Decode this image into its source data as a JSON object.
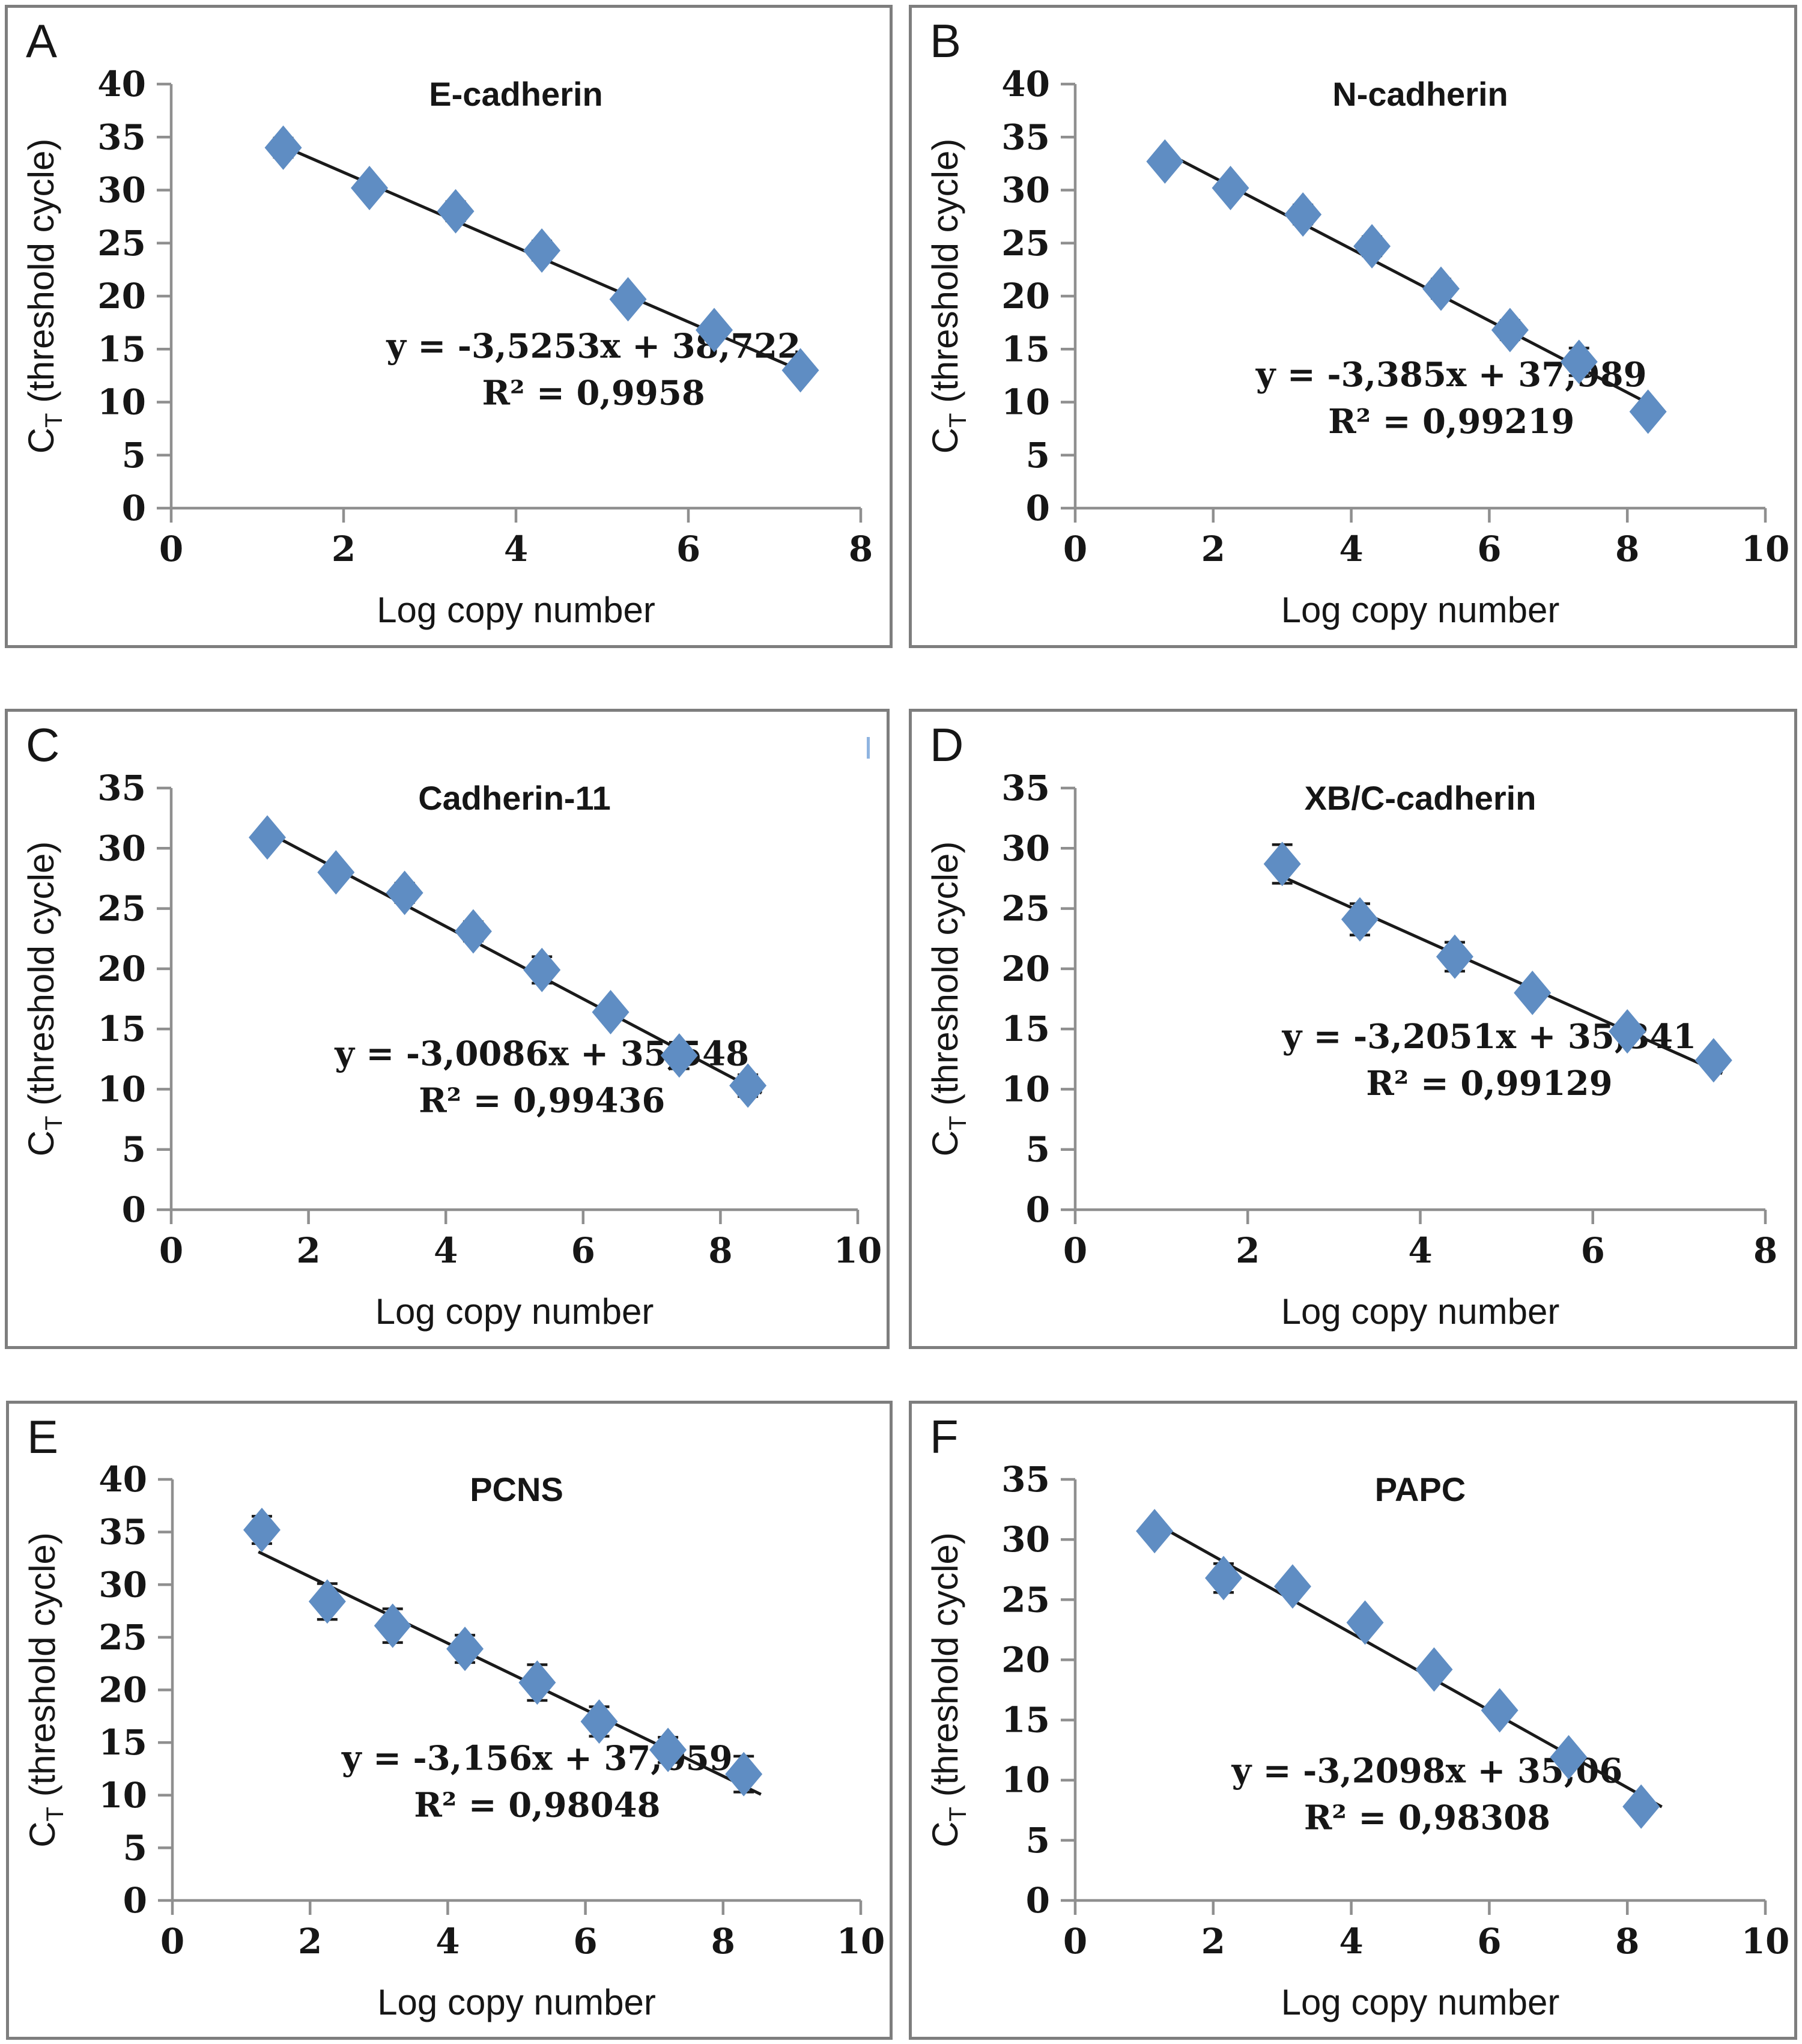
{
  "figure": {
    "background": "#ffffff",
    "panel_border_color": "#7e7e7e",
    "axis_color": "#8f8f8f",
    "text_color": "#161616",
    "marker_color": "#5f8dc3",
    "trend_color": "#1a1a1a",
    "error_bar_color": "#1a1a1a"
  },
  "chart_data": [
    {
      "type": "scatter",
      "panel": "A",
      "title": "E-cadherin",
      "xlabel": "Log copy number",
      "ylabel_pre": "C",
      "ylabel_sub": "T",
      "ylabel_post": " (threshold cycle)",
      "xlim": [
        0,
        8
      ],
      "ylim": [
        0,
        40
      ],
      "xticks": [
        0,
        2,
        4,
        6,
        8
      ],
      "yticks": [
        0,
        5,
        10,
        15,
        20,
        25,
        30,
        35,
        40
      ],
      "grid": false,
      "legend": false,
      "error_bars": true,
      "equation": "y = -3,5253x + 38,722",
      "r_squared": "R² = 0,9958",
      "slope": -3.5253,
      "intercept": 38.722,
      "trend_x": [
        1.25,
        7.4
      ],
      "equation_pos": [
        4.9,
        14.2
      ],
      "points": [
        {
          "x": 1.3,
          "y": 34.0,
          "err": 0.9
        },
        {
          "x": 2.3,
          "y": 30.2,
          "err": 0.5
        },
        {
          "x": 3.3,
          "y": 28.0,
          "err": 0.9
        },
        {
          "x": 4.3,
          "y": 24.3,
          "err": 0.9
        },
        {
          "x": 5.3,
          "y": 19.7,
          "err": 0.5
        },
        {
          "x": 6.3,
          "y": 16.8,
          "err": 0.8
        },
        {
          "x": 7.3,
          "y": 13.0,
          "err": 0.3
        }
      ]
    },
    {
      "type": "scatter",
      "panel": "B",
      "title": "N-cadherin",
      "xlabel": "Log copy number",
      "ylabel_pre": "C",
      "ylabel_sub": "T",
      "ylabel_post": " (threshold cycle)",
      "xlim": [
        0,
        10
      ],
      "ylim": [
        0,
        40
      ],
      "xticks": [
        0,
        2,
        4,
        6,
        8,
        10
      ],
      "yticks": [
        0,
        5,
        10,
        15,
        20,
        25,
        30,
        35,
        40
      ],
      "grid": false,
      "legend": false,
      "error_bars": true,
      "equation": "y = -3,385x + 37,989",
      "r_squared": "R² = 0,99219",
      "slope": -3.385,
      "intercept": 37.989,
      "trend_x": [
        1.3,
        8.5
      ],
      "equation_pos": [
        5.45,
        11.5
      ],
      "points": [
        {
          "x": 1.3,
          "y": 32.7,
          "err": 0.8
        },
        {
          "x": 2.25,
          "y": 30.2,
          "err": 0.8
        },
        {
          "x": 3.3,
          "y": 27.7,
          "err": 0.9
        },
        {
          "x": 4.3,
          "y": 24.7,
          "err": 0.9
        },
        {
          "x": 5.3,
          "y": 20.7,
          "err": 0.9
        },
        {
          "x": 6.3,
          "y": 16.8,
          "err": 0.9
        },
        {
          "x": 7.3,
          "y": 13.8,
          "err": 1.3
        },
        {
          "x": 8.3,
          "y": 9.1,
          "err": 0.2
        }
      ]
    },
    {
      "type": "scatter",
      "panel": "C",
      "title": "Cadherin-11",
      "xlabel": "Log copy number",
      "ylabel_pre": "C",
      "ylabel_sub": "T",
      "ylabel_post": " (threshold cycle)",
      "xlim": [
        0,
        10
      ],
      "ylim": [
        0,
        35
      ],
      "xticks": [
        0,
        2,
        4,
        6,
        8,
        10
      ],
      "yticks": [
        0,
        5,
        10,
        15,
        20,
        25,
        30,
        35
      ],
      "grid": false,
      "legend": false,
      "error_bars": true,
      "equation": "y = -3,0086x + 35,548",
      "r_squared": "R² = 0,99436",
      "slope": -3.0086,
      "intercept": 35.548,
      "trend_x": [
        1.35,
        8.6
      ],
      "equation_pos": [
        5.4,
        12.0
      ],
      "points": [
        {
          "x": 1.4,
          "y": 30.9,
          "err": 0.4
        },
        {
          "x": 2.4,
          "y": 28.0,
          "err": 0.5
        },
        {
          "x": 3.4,
          "y": 26.3,
          "err": 0.8
        },
        {
          "x": 4.4,
          "y": 23.1,
          "err": 0.8
        },
        {
          "x": 5.4,
          "y": 19.9,
          "err": 1.1
        },
        {
          "x": 6.4,
          "y": 16.4,
          "err": 0.7
        },
        {
          "x": 7.4,
          "y": 12.8,
          "err": 1.1
        },
        {
          "x": 8.4,
          "y": 10.3,
          "err": 0.9
        }
      ]
    },
    {
      "type": "scatter",
      "panel": "D",
      "title": "XB/C-cadherin",
      "xlabel": "Log copy number",
      "ylabel_pre": "C",
      "ylabel_sub": "T",
      "ylabel_post": " (threshold cycle)",
      "xlim": [
        0,
        8
      ],
      "ylim": [
        0,
        35
      ],
      "xticks": [
        0,
        2,
        4,
        6,
        8
      ],
      "yticks": [
        0,
        5,
        10,
        15,
        20,
        25,
        30,
        35
      ],
      "grid": false,
      "legend": false,
      "error_bars": true,
      "equation": "y = -3,2051x + 35,341",
      "r_squared": "R² = 0,99129",
      "slope": -3.2051,
      "intercept": 35.341,
      "trend_x": [
        2.35,
        7.5
      ],
      "equation_pos": [
        4.8,
        13.4
      ],
      "points": [
        {
          "x": 2.4,
          "y": 28.7,
          "err": 1.6
        },
        {
          "x": 3.3,
          "y": 24.1,
          "err": 1.3
        },
        {
          "x": 4.4,
          "y": 21.0,
          "err": 1.2
        },
        {
          "x": 5.3,
          "y": 18.0,
          "err": 0.6
        },
        {
          "x": 6.4,
          "y": 14.8,
          "err": 0.5
        },
        {
          "x": 7.4,
          "y": 12.4,
          "err": 0.7
        }
      ]
    },
    {
      "type": "scatter",
      "panel": "E",
      "title": "PCNS",
      "xlabel": "Log copy number",
      "ylabel_pre": "C",
      "ylabel_sub": "T",
      "ylabel_post": " (threshold cycle)",
      "xlim": [
        0,
        10
      ],
      "ylim": [
        0,
        40
      ],
      "xticks": [
        0,
        2,
        4,
        6,
        8,
        10
      ],
      "yticks": [
        0,
        5,
        10,
        15,
        20,
        25,
        30,
        35,
        40
      ],
      "grid": false,
      "legend": false,
      "error_bars": true,
      "equation": "y = -3,156x + 37,059",
      "r_squared": "R² = 0,98048",
      "slope": -3.156,
      "intercept": 37.059,
      "trend_x": [
        1.25,
        8.55
      ],
      "equation_pos": [
        5.3,
        12.4
      ],
      "points": [
        {
          "x": 1.3,
          "y": 35.2,
          "err": 1.3
        },
        {
          "x": 2.25,
          "y": 28.4,
          "err": 1.7
        },
        {
          "x": 3.2,
          "y": 26.1,
          "err": 1.6
        },
        {
          "x": 4.25,
          "y": 23.9,
          "err": 1.3
        },
        {
          "x": 5.3,
          "y": 20.7,
          "err": 1.7
        },
        {
          "x": 6.2,
          "y": 17.0,
          "err": 1.4
        },
        {
          "x": 7.2,
          "y": 14.3,
          "err": 1.2
        },
        {
          "x": 8.3,
          "y": 12.0,
          "err": 1.7
        }
      ]
    },
    {
      "type": "scatter",
      "panel": "F",
      "title": "PAPC",
      "xlabel": "Log copy number",
      "ylabel_pre": "C",
      "ylabel_sub": "T",
      "ylabel_post": " (threshold cycle)",
      "xlim": [
        0,
        10
      ],
      "ylim": [
        0,
        35
      ],
      "xticks": [
        0,
        2,
        4,
        6,
        8,
        10
      ],
      "yticks": [
        0,
        5,
        10,
        15,
        20,
        25,
        30,
        35
      ],
      "grid": false,
      "legend": false,
      "error_bars": true,
      "equation": "y = -3,2098x + 35,06",
      "r_squared": "R² = 0,98308",
      "slope": -3.2098,
      "intercept": 35.06,
      "trend_x": [
        1.1,
        8.5
      ],
      "equation_pos": [
        5.1,
        9.8
      ],
      "points": [
        {
          "x": 1.15,
          "y": 30.7,
          "err": 0.6
        },
        {
          "x": 2.15,
          "y": 26.8,
          "err": 1.2
        },
        {
          "x": 3.15,
          "y": 26.1,
          "err": 0.5
        },
        {
          "x": 4.2,
          "y": 23.1,
          "err": 0.3
        },
        {
          "x": 5.2,
          "y": 19.2,
          "err": 0.4
        },
        {
          "x": 6.15,
          "y": 15.8,
          "err": 0.4
        },
        {
          "x": 7.15,
          "y": 11.9,
          "err": 0.5
        },
        {
          "x": 8.2,
          "y": 7.8,
          "err": 0.3
        }
      ]
    }
  ]
}
